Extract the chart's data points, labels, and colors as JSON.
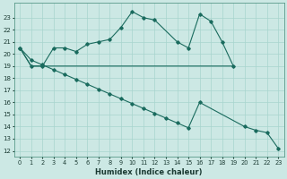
{
  "xlabel": "Humidex (Indice chaleur)",
  "background_color": "#cce8e4",
  "line_color": "#1a6b5e",
  "grid_color": "#a8d4ce",
  "line1_x": [
    0,
    1,
    2,
    3,
    4,
    5,
    6,
    7,
    8,
    9,
    10,
    11,
    12,
    14,
    15,
    16,
    17,
    18,
    19
  ],
  "line1_y": [
    20.5,
    19.0,
    19.0,
    20.5,
    20.5,
    20.2,
    20.8,
    21.0,
    21.2,
    22.2,
    23.5,
    23.0,
    22.8,
    21.0,
    20.5,
    23.3,
    22.7,
    21.0,
    19.0
  ],
  "line2_x": [
    0,
    1,
    2,
    19
  ],
  "line2_y": [
    20.5,
    19.0,
    19.0,
    19.0
  ],
  "line3_x": [
    0,
    1,
    2,
    3,
    4,
    5,
    6,
    7,
    8,
    9,
    10,
    11,
    12,
    13,
    14,
    15,
    16,
    20,
    21,
    22,
    23
  ],
  "line3_y": [
    20.5,
    19.5,
    19.1,
    18.7,
    18.3,
    17.9,
    17.5,
    17.1,
    16.7,
    16.3,
    15.9,
    15.5,
    15.1,
    14.7,
    14.3,
    13.9,
    16.0,
    14.0,
    13.7,
    13.5,
    12.2
  ],
  "ylim": [
    11.5,
    24.2
  ],
  "yticks": [
    12,
    13,
    14,
    15,
    16,
    17,
    18,
    19,
    20,
    21,
    22,
    23
  ],
  "xticks": [
    0,
    1,
    2,
    3,
    4,
    5,
    6,
    7,
    8,
    9,
    10,
    11,
    12,
    13,
    14,
    15,
    16,
    17,
    18,
    19,
    20,
    21,
    22,
    23
  ],
  "figsize": [
    3.2,
    2.0
  ],
  "dpi": 100
}
